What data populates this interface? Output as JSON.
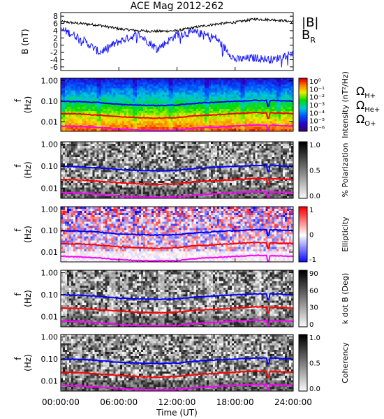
{
  "title": "ACE Mag 2012-262",
  "xaxis": {
    "label": "Time (UT)",
    "ticks": [
      "00:00:00",
      "06:00:00",
      "12:00:00",
      "18:00:00",
      "24:00:00"
    ],
    "range_hours": [
      0,
      24
    ]
  },
  "colors": {
    "B_total": "#000000",
    "B_R": "#1a1aff",
    "omega_H": "#0000ff",
    "omega_He": "#ff0000",
    "omega_O": "#ff00ff"
  },
  "chart_data": [
    {
      "type": "line",
      "panel": "magnetic-field",
      "ylabel": "B (nT)",
      "ylim": [
        -7,
        9
      ],
      "yticks": [
        "8",
        "6",
        "4",
        "2",
        "0",
        "-2",
        "-4",
        "-6"
      ],
      "legend": [
        "|B|",
        "B_R"
      ],
      "x": [
        0,
        2,
        4,
        6,
        8,
        10,
        12,
        14,
        16,
        18,
        20,
        22,
        24
      ],
      "series": [
        {
          "name": "|B|",
          "values": [
            6.5,
            6,
            5.5,
            4.5,
            4,
            3.8,
            4,
            5,
            5.8,
            6.3,
            7.2,
            7,
            6.5
          ]
        },
        {
          "name": "B_R",
          "values": [
            4.5,
            2,
            -2,
            1,
            3,
            -1,
            3,
            3.5,
            2,
            -4,
            -3.5,
            -4,
            -2
          ]
        }
      ]
    },
    {
      "type": "heatmap",
      "panel": "intensity",
      "ylabel": "f (Hz)",
      "yticks": [
        "1.00",
        "0.10",
        "0.01"
      ],
      "colorbar_label": "Intensity (nT²/Hz)",
      "colorbar_ticks": [
        "10⁰",
        "10⁻¹",
        "10⁻²",
        "10⁻³",
        "10⁻⁴",
        "10⁻⁵",
        "10⁻⁶"
      ],
      "legend": [
        "Ω_H+",
        "Ω_He+",
        "Ω_O+"
      ]
    },
    {
      "type": "heatmap",
      "panel": "polarization",
      "ylabel": "f (Hz)",
      "yticks": [
        "1.00",
        "0.10",
        "0.01"
      ],
      "colorbar_label": "% Polarization",
      "colorbar_ticks": [
        "1.0",
        "0.5",
        "0.0"
      ]
    },
    {
      "type": "heatmap",
      "panel": "ellipticity",
      "ylabel": "f (Hz)",
      "yticks": [
        "1.00",
        "0.10",
        "0.01"
      ],
      "colorbar_label": "Ellipticity",
      "colorbar_ticks": [
        "1",
        "0",
        "-1"
      ]
    },
    {
      "type": "heatmap",
      "panel": "k-dot-b",
      "ylabel": "f (Hz)",
      "yticks": [
        "1.00",
        "0.10",
        "0.01"
      ],
      "colorbar_label": "k dot B (Deg)",
      "colorbar_ticks": [
        "90",
        "60",
        "30",
        "0"
      ]
    },
    {
      "type": "heatmap",
      "panel": "coherency",
      "ylabel": "f (Hz)",
      "yticks": [
        "1.00",
        "0.10",
        "0.01"
      ],
      "colorbar_label": "Coherency",
      "colorbar_ticks": [
        "1.0",
        "0.5",
        "0.0"
      ]
    }
  ],
  "gyrofrequency": {
    "x": [
      0,
      2,
      4,
      6,
      8,
      10,
      12,
      14,
      16,
      18,
      20,
      22,
      24
    ],
    "H_hz": [
      0.1,
      0.095,
      0.085,
      0.07,
      0.065,
      0.062,
      0.065,
      0.08,
      0.09,
      0.1,
      0.11,
      0.108,
      0.1
    ],
    "He_hz": [
      0.025,
      0.024,
      0.021,
      0.018,
      0.016,
      0.015,
      0.016,
      0.02,
      0.022,
      0.025,
      0.028,
      0.027,
      0.025
    ],
    "O_hz": [
      0.0063,
      0.006,
      0.0053,
      0.0045,
      0.004,
      0.0039,
      0.004,
      0.005,
      0.0056,
      0.0063,
      0.007,
      0.0068,
      0.0063
    ]
  }
}
